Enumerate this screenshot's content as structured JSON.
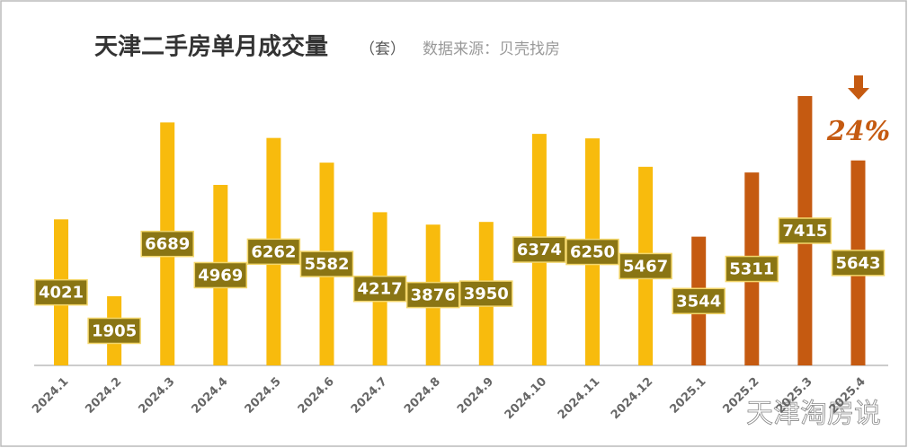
{
  "chart_data": {
    "type": "bar",
    "title": "天津二手房单月成交量",
    "unit": "（套）",
    "source": "数据来源：贝壳找房",
    "categories": [
      "2024.1",
      "2024.2",
      "2024.3",
      "2024.4",
      "2024.5",
      "2024.6",
      "2024.7",
      "2024.8",
      "2024.9",
      "2024.10",
      "2024.11",
      "2024.12",
      "2025.1",
      "2025.2",
      "2025.3",
      "2025.4"
    ],
    "values": [
      4021,
      1905,
      6689,
      4969,
      6262,
      5582,
      4217,
      3876,
      3950,
      6374,
      6250,
      5467,
      3544,
      5311,
      7415,
      5643
    ],
    "colors": [
      "#f8bb0d",
      "#f8bb0d",
      "#f8bb0d",
      "#f8bb0d",
      "#f8bb0d",
      "#f8bb0d",
      "#f8bb0d",
      "#f8bb0d",
      "#f8bb0d",
      "#f8bb0d",
      "#f8bb0d",
      "#f8bb0d",
      "#c55a11",
      "#c55a11",
      "#c55a11",
      "#c55a11"
    ],
    "annotation": "24%",
    "annotation_color": "#c55a11",
    "watermark": "天津淘房说"
  }
}
